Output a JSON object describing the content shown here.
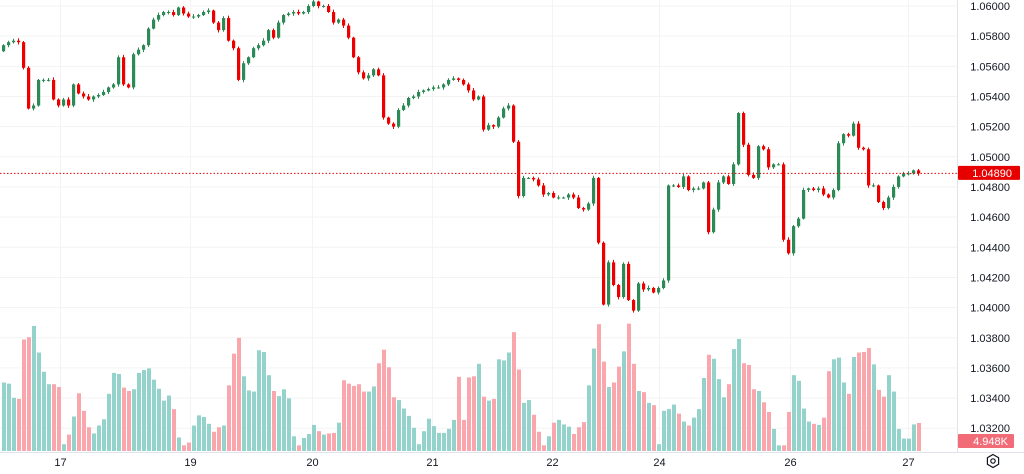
{
  "chart_data": {
    "type": "candlestick",
    "title": "",
    "first_open": 1.057,
    "closes": [
      1.0574,
      1.0576,
      1.0577,
      1.0576,
      1.0559,
      1.0532,
      1.0534,
      1.0551,
      1.0551,
      1.0551,
      1.0538,
      1.0534,
      1.0538,
      1.0534,
      1.0548,
      1.0542,
      1.054,
      1.0538,
      1.054,
      1.0541,
      1.0543,
      1.0546,
      1.0548,
      1.0566,
      1.0548,
      1.0546,
      1.0568,
      1.0571,
      1.0574,
      1.0585,
      1.0591,
      1.0594,
      1.0596,
      1.0596,
      1.0594,
      1.0599,
      1.0595,
      1.0593,
      1.0593,
      1.0594,
      1.0596,
      1.0597,
      1.0589,
      1.0584,
      1.0592,
      1.0577,
      1.0572,
      1.0551,
      1.0562,
      1.0566,
      1.0572,
      1.0574,
      1.0577,
      1.0584,
      1.0579,
      1.0589,
      1.0594,
      1.0595,
      1.0596,
      1.0595,
      1.0596,
      1.06,
      1.0603,
      1.06,
      1.06,
      1.0596,
      1.0589,
      1.0591,
      1.0587,
      1.0579,
      1.0566,
      1.0556,
      1.0552,
      1.0554,
      1.0558,
      1.0554,
      1.0526,
      1.0522,
      1.052,
      1.0531,
      1.0534,
      1.0539,
      1.054,
      1.0543,
      1.0544,
      1.0545,
      1.0546,
      1.0546,
      1.0548,
      1.0551,
      1.0552,
      1.0551,
      1.0548,
      1.0544,
      1.0538,
      1.054,
      1.0518,
      1.0521,
      1.052,
      1.0526,
      1.0532,
      1.0534,
      1.051,
      1.0474,
      1.0486,
      1.0486,
      1.0485,
      1.0481,
      1.0475,
      1.0476,
      1.0473,
      1.0473,
      1.0473,
      1.0475,
      1.0473,
      1.0466,
      1.0465,
      1.0469,
      1.0486,
      1.0443,
      1.0402,
      1.043,
      1.0415,
      1.0407,
      1.0429,
      1.0405,
      1.0398,
      1.0416,
      1.0412,
      1.0413,
      1.041,
      1.0413,
      1.0418,
      1.0481,
      1.0481,
      1.048,
      1.0487,
      1.0478,
      1.0479,
      1.0479,
      1.0483,
      1.045,
      1.0465,
      1.0483,
      1.0487,
      1.0482,
      1.0495,
      1.0529,
      1.0508,
      1.0488,
      1.0486,
      1.0507,
      1.0505,
      1.0493,
      1.0495,
      1.0495,
      1.0445,
      1.0436,
      1.0454,
      1.0459,
      1.0478,
      1.0479,
      1.0478,
      1.0479,
      1.0475,
      1.0473,
      1.0478,
      1.0509,
      1.0515,
      1.0514,
      1.0522,
      1.0506,
      1.0505,
      1.0481,
      1.0481,
      1.047,
      1.0466,
      1.0473,
      1.048,
      1.0487,
      1.0489,
      1.0489,
      1.0491,
      1.0489
    ],
    "volumes_k": [
      12.1,
      11.9,
      9.4,
      9.2,
      19.7,
      20.1,
      22.1,
      17.4,
      14.0,
      11.8,
      11.8,
      11.3,
      1.2,
      2.9,
      6.1,
      10.2,
      7.1,
      4.2,
      3.1,
      4.5,
      5.6,
      10.1,
      13.8,
      13.6,
      11.2,
      10.6,
      10.9,
      13.8,
      14.3,
      14.6,
      12.6,
      11.0,
      8.9,
      9.8,
      7.4,
      2.4,
      1.0,
      1.5,
      4.5,
      6.3,
      6.0,
      4.8,
      3.4,
      4.2,
      4.5,
      11.6,
      17.2,
      20.0,
      13.2,
      10.7,
      10.5,
      17.8,
      17.5,
      13.4,
      10.6,
      9.7,
      10.9,
      9.3,
      2.6,
      1.0,
      2.3,
      3.0,
      4.6,
      3.5,
      2.9,
      3.1,
      3.2,
      5.0,
      12.5,
      11.9,
      11.5,
      11.8,
      10.5,
      10.5,
      11.4,
      15.5,
      17.9,
      14.8,
      9.5,
      9.0,
      7.5,
      6.2,
      4.1,
      1.2,
      3.5,
      5.7,
      4.4,
      3.2,
      3.2,
      3.9,
      5.5,
      13.1,
      5.5,
      13.0,
      13.2,
      15.4,
      9.6,
      8.9,
      9.2,
      16.2,
      16.0,
      17.4,
      21.0,
      14.4,
      8.5,
      9.0,
      6.4,
      3.4,
      1.0,
      2.6,
      5.0,
      5.5,
      4.7,
      4.3,
      3.0,
      4.2,
      5.1,
      11.6,
      18.1,
      22.4,
      15.8,
      11.3,
      12.1,
      14.9,
      17.6,
      22.5,
      15.4,
      10.6,
      10.4,
      8.5,
      8.1,
      1.2,
      7.1,
      7.4,
      8.2,
      6.6,
      5.2,
      4.5,
      5.9,
      7.4,
      12.9,
      17.0,
      16.3,
      12.7,
      9.5,
      11.8,
      18.0,
      19.8,
      15.5,
      15.2,
      10.9,
      10.6,
      8.6,
      6.9,
      3.9,
      1.0,
      1.0,
      6.9,
      13.4,
      12.4,
      7.5,
      5.2,
      4.8,
      4.6,
      5.9,
      14.1,
      16.2,
      16.5,
      12.1,
      10.1,
      16.6,
      17.4,
      17.5,
      18.2,
      15.3,
      10.8,
      9.6,
      13.4,
      10.5,
      3.9,
      2.2,
      2.2,
      4.7,
      4.948
    ],
    "y_ticks": [
      "1.06000",
      "1.05800",
      "1.05600",
      "1.05400",
      "1.05200",
      "1.05000",
      "1.04800",
      "1.04600",
      "1.04400",
      "1.04200",
      "1.04000",
      "1.03800",
      "1.03600",
      "1.03400",
      "1.03200"
    ],
    "x_ticks": [
      {
        "label": "17",
        "bar": 11.4
      },
      {
        "label": "19",
        "bar": 37.4
      },
      {
        "label": "20",
        "bar": 61.8
      },
      {
        "label": "21",
        "bar": 85.8
      },
      {
        "label": "22",
        "bar": 109.8
      },
      {
        "label": "24",
        "bar": 131.2
      },
      {
        "label": "26",
        "bar": 157.4
      },
      {
        "label": "27",
        "bar": 181
      }
    ],
    "last_price": "1.04890",
    "last_price_value": 1.0489,
    "last_volume": "4.948K",
    "grid": true,
    "colors": {
      "up": "#2b8a55",
      "down": "#ee0000",
      "vol_up": "#93d3cb",
      "vol_down": "#f9a6ad",
      "price_badge": "#e60000",
      "volume_badge": "#f26c78",
      "grid": "#f3f3f3"
    }
  },
  "controls": {
    "settings_icon": "gear-icon"
  }
}
